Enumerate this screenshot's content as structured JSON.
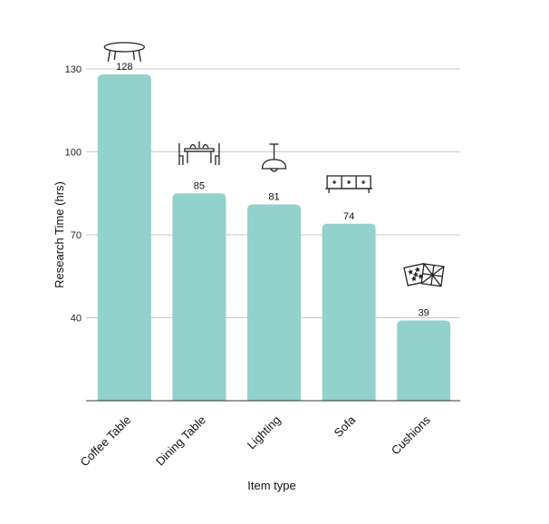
{
  "chart_data": {
    "type": "bar",
    "title": "",
    "xlabel": "Item type",
    "ylabel": "Research Time (hrs)",
    "categories": [
      "Coffee Table",
      "Dining Table",
      "Lighting",
      "Sofa",
      "Cushions"
    ],
    "values": [
      128,
      85,
      81,
      74,
      39
    ],
    "value_labels": [
      "128",
      "85",
      "81",
      "74",
      "39"
    ],
    "ylim": [
      10,
      140
    ],
    "yticks": [
      40,
      70,
      100,
      130
    ],
    "grid": true,
    "bar_color": "#93d1cb",
    "icons": [
      "coffee-table-icon",
      "dining-table-icon",
      "lighting-icon",
      "sofa-icon",
      "cushions-icon"
    ]
  }
}
